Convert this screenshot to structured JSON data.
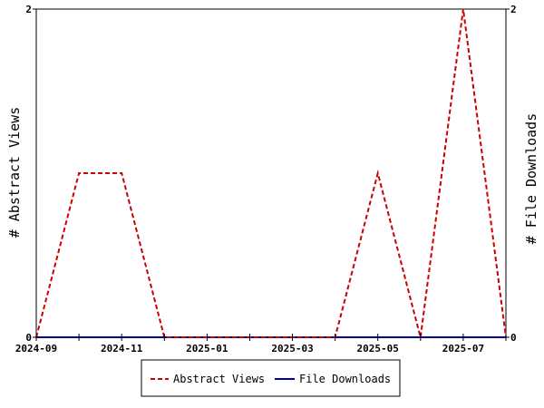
{
  "chart_data": {
    "type": "line",
    "x": [
      "2024-09",
      "2024-10",
      "2024-11",
      "2024-12",
      "2025-01",
      "2025-02",
      "2025-03",
      "2025-04",
      "2025-05",
      "2025-06",
      "2025-07",
      "2025-08"
    ],
    "x_tick_labels": [
      "2024-09",
      "2024-11",
      "2025-01",
      "2025-03",
      "2025-05",
      "2025-07"
    ],
    "series": [
      {
        "name": "Abstract Views",
        "values": [
          0,
          1,
          1,
          0,
          0,
          0,
          0,
          0,
          1,
          0,
          2,
          0
        ],
        "color": "#cc0000",
        "style": "dashed",
        "axis": "left"
      },
      {
        "name": "File Downloads",
        "values": [
          0,
          0,
          0,
          0,
          0,
          0,
          0,
          0,
          0,
          0,
          0,
          0
        ],
        "color": "#000099",
        "style": "solid",
        "axis": "right"
      }
    ],
    "ylabel_left": "# Abstract Views",
    "ylabel_right": "# File Downloads",
    "ylim_left": [
      0,
      2
    ],
    "ylim_right": [
      0,
      2
    ],
    "y_tick_labels_left": [
      "0",
      "2"
    ],
    "y_tick_labels_right": [
      "0",
      "2"
    ],
    "grid": false,
    "legend_position": "bottom-center"
  }
}
